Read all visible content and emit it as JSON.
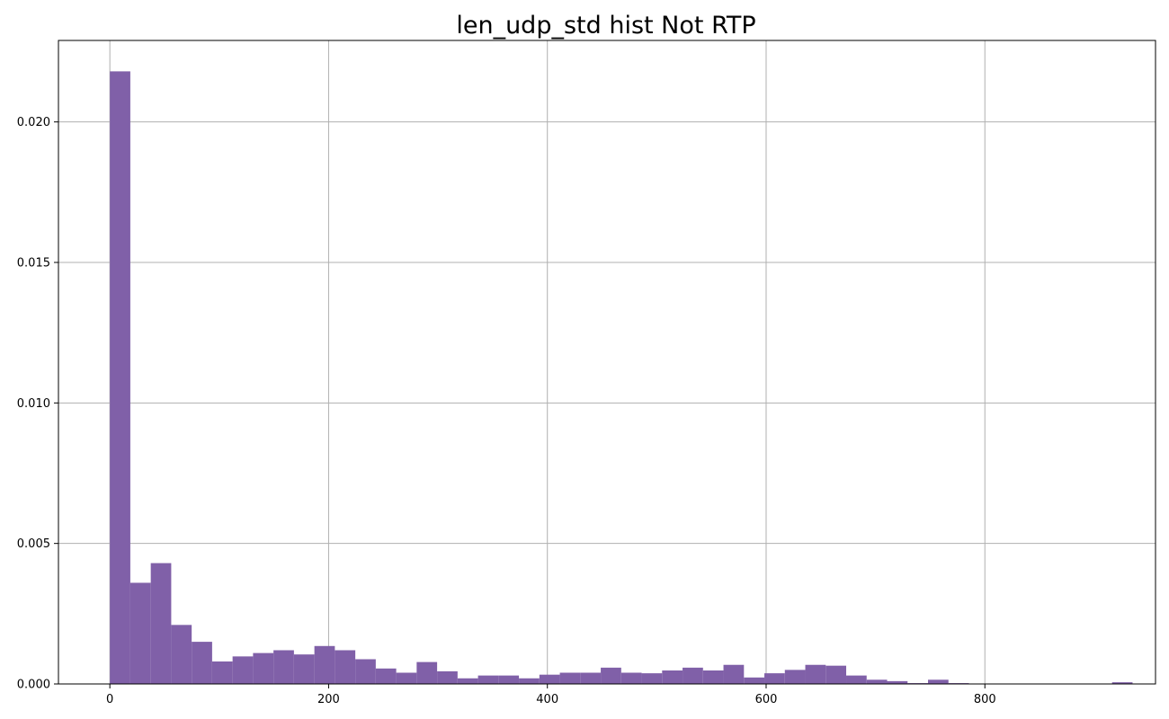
{
  "chart_data": {
    "type": "bar",
    "title": "len_udp_std hist Not RTP",
    "xlabel": "",
    "ylabel": "",
    "xlim": [
      -47,
      956
    ],
    "ylim": [
      0,
      0.0229
    ],
    "grid": true,
    "bar_color": "#8060a8",
    "bin_width": 18.7,
    "x_ticks": [
      0,
      200,
      400,
      600,
      800
    ],
    "x_tick_labels": [
      "0",
      "200",
      "400",
      "600",
      "800"
    ],
    "y_ticks": [
      0,
      0.005,
      0.01,
      0.015,
      0.02
    ],
    "y_tick_labels": [
      "0.000",
      "0.005",
      "0.010",
      "0.015",
      "0.020"
    ],
    "bin_starts": [
      0,
      18.7,
      37.4,
      56.1,
      74.8,
      93.5,
      112.2,
      130.9,
      149.6,
      168.3,
      187.0,
      205.7,
      224.4,
      243.1,
      261.8,
      280.5,
      299.2,
      317.9,
      336.6,
      355.3,
      374.0,
      392.7,
      411.4,
      430.1,
      448.8,
      467.5,
      486.2,
      504.9,
      523.6,
      542.3,
      561.0,
      579.7,
      598.4,
      617.1,
      635.8,
      654.5,
      673.2,
      691.9,
      710.6,
      729.3,
      748.0,
      766.7,
      785.4,
      804.1,
      822.8,
      841.5,
      860.2,
      878.9,
      897.6,
      916.3
    ],
    "values": [
      0.0218,
      0.0036,
      0.0043,
      0.0021,
      0.0015,
      0.0008,
      0.00098,
      0.0011,
      0.0012,
      0.00105,
      0.00135,
      0.0012,
      0.00088,
      0.00055,
      0.0004,
      0.00078,
      0.00045,
      0.0002,
      0.0003,
      0.0003,
      0.0002,
      0.00033,
      0.0004,
      0.0004,
      0.00058,
      0.0004,
      0.00038,
      0.00048,
      0.00058,
      0.00048,
      0.00068,
      0.00023,
      0.00038,
      0.0005,
      0.00068,
      0.00065,
      0.0003,
      0.00015,
      0.0001,
      3e-05,
      0.00015,
      3e-05,
      0.0,
      0.0,
      0.0,
      0.0,
      0.0,
      0.0,
      0.0,
      6e-05
    ]
  }
}
